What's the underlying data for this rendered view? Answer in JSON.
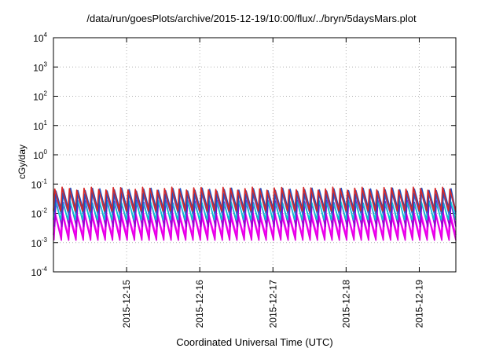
{
  "chart_data": {
    "type": "line",
    "title": "/data/run/goesPlots/archive/2015-12-19/10:00/flux/../bryn/5daysMars.plot",
    "xlabel": "Coordinated Universal Time (UTC)",
    "ylabel": "cGy/day",
    "yscale": "log",
    "ylim": [
      0.0001,
      10000
    ],
    "y_ticks": [
      {
        "base": "10",
        "exp": "-4",
        "value": 0.0001
      },
      {
        "base": "10",
        "exp": "-3",
        "value": 0.001
      },
      {
        "base": "10",
        "exp": "-2",
        "value": 0.01
      },
      {
        "base": "10",
        "exp": "-1",
        "value": 0.1
      },
      {
        "base": "10",
        "exp": "0",
        "value": 1
      },
      {
        "base": "10",
        "exp": "1",
        "value": 10
      },
      {
        "base": "10",
        "exp": "2",
        "value": 100
      },
      {
        "base": "10",
        "exp": "3",
        "value": 1000
      },
      {
        "base": "10",
        "exp": "4",
        "value": 10000
      }
    ],
    "xlim": [
      "2015-12-14T00:00",
      "2015-12-19T12:00"
    ],
    "x_ticks": [
      "2015-12-15",
      "2015-12-16",
      "2015-12-17",
      "2015-12-18",
      "2015-12-19"
    ],
    "grid": true,
    "legend": "none",
    "series_shape": {
      "description_of_values": "oscillating dose rate, ~10 cycles per day",
      "cycles_per_day": 10,
      "layers": [
        {
          "color": "#ff00ff",
          "peak": 0.012,
          "trough": 0.0018
        },
        {
          "color": "#e000e0",
          "peak": 0.008,
          "trough": 0.0012
        },
        {
          "color": "#9400d3",
          "peak": 0.025,
          "trough": 0.0035
        },
        {
          "color": "#00cfcf",
          "peak": 0.03,
          "trough": 0.006
        },
        {
          "color": "#2f6fd6",
          "peak": 0.05,
          "trough": 0.009
        },
        {
          "color": "#1f4fc0",
          "peak": 0.065,
          "trough": 0.011
        },
        {
          "color": "#d62728",
          "peak": 0.07,
          "trough": 0.012
        }
      ]
    }
  }
}
